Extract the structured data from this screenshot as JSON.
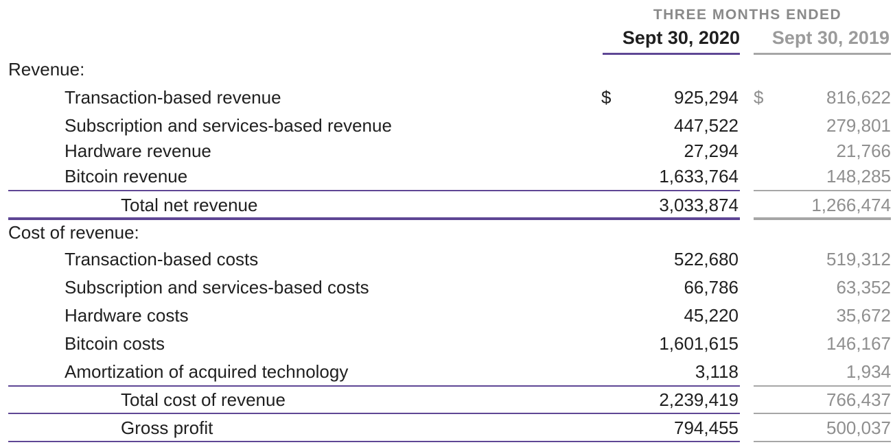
{
  "header": {
    "period": "THREE MONTHS ENDED",
    "col_current": "Sept 30, 2020",
    "col_prior": "Sept 30, 2019"
  },
  "rows": [
    {
      "label": "Revenue:"
    },
    {
      "label": "Transaction-based revenue",
      "currency": "$",
      "v2020": "925,294",
      "v2019": "816,622"
    },
    {
      "label": "Subscription and services-based revenue",
      "v2020": "447,522",
      "v2019": "279,801"
    },
    {
      "label": "Hardware revenue",
      "v2020": "27,294",
      "v2019": "21,766"
    },
    {
      "label": "Bitcoin revenue",
      "v2020": "1,633,764",
      "v2019": "148,285"
    },
    {
      "label": "Total net revenue",
      "v2020": "3,033,874",
      "v2019": "1,266,474"
    },
    {
      "label": "Cost of revenue:"
    },
    {
      "label": "Transaction-based costs",
      "v2020": "522,680",
      "v2019": "519,312"
    },
    {
      "label": "Subscription and services-based costs",
      "v2020": "66,786",
      "v2019": "63,352"
    },
    {
      "label": "Hardware costs",
      "v2020": "45,220",
      "v2019": "35,672"
    },
    {
      "label": "Bitcoin costs",
      "v2020": "1,601,615",
      "v2019": "146,167"
    },
    {
      "label": "Amortization of acquired technology",
      "v2020": "3,118",
      "v2019": "1,934"
    },
    {
      "label": "Total cost of revenue",
      "v2020": "2,239,419",
      "v2019": "766,437"
    },
    {
      "label": "Gross profit",
      "v2020": "794,455",
      "v2019": "500,037"
    }
  ],
  "colors": {
    "accent_purple": "#5e4694",
    "prior_gray": "#8f8f8f"
  }
}
